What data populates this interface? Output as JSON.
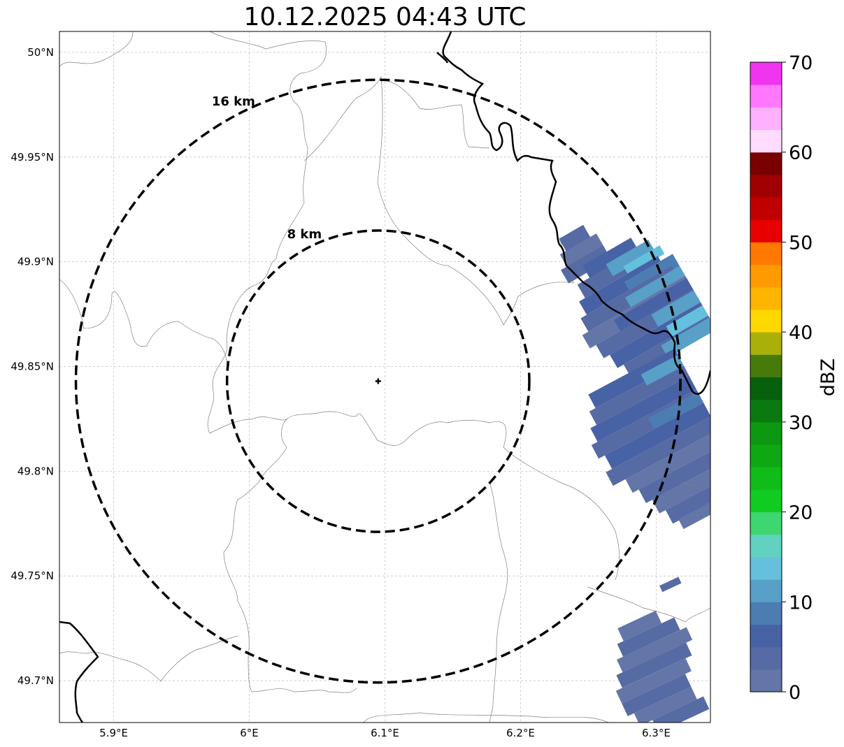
{
  "title": "10.12.2025 04:43 UTC",
  "map": {
    "lon_ticks": [
      {
        "value": 5.9,
        "label": "5.9°E"
      },
      {
        "value": 6.0,
        "label": "6°E"
      },
      {
        "value": 6.1,
        "label": "6.1°E"
      },
      {
        "value": 6.2,
        "label": "6.2°E"
      },
      {
        "value": 6.3,
        "label": "6.3°E"
      }
    ],
    "lat_ticks": [
      {
        "value": 50.0,
        "label": "50°N"
      },
      {
        "value": 49.95,
        "label": "49.95°N"
      },
      {
        "value": 49.9,
        "label": "49.9°N"
      },
      {
        "value": 49.85,
        "label": "49.85°N"
      },
      {
        "value": 49.8,
        "label": "49.8°N"
      },
      {
        "value": 49.75,
        "label": "49.75°N"
      },
      {
        "value": 49.7,
        "label": "49.7°N"
      }
    ],
    "lon_range": [
      5.86,
      6.34
    ],
    "lat_range": [
      49.68,
      50.01
    ],
    "gridlines": true,
    "radar_site": {
      "lon": 6.095,
      "lat": 49.843
    },
    "range_rings": [
      {
        "km": 8,
        "label": "8 km"
      },
      {
        "km": 16,
        "label": "16 km"
      }
    ]
  },
  "colorbar": {
    "label": "dBZ",
    "ticks": [
      "0",
      "10",
      "20",
      "30",
      "40",
      "50",
      "60",
      "70"
    ],
    "min": 0,
    "max": 70,
    "step": 2.5,
    "colors": [
      "#6475a8",
      "#566aa4",
      "#4862a6",
      "#4c7db2",
      "#58a0c8",
      "#64c0dc",
      "#62d2c0",
      "#3ed670",
      "#10cc20",
      "#10bc18",
      "#0ea812",
      "#0c9810",
      "#0a7a10",
      "#06600c",
      "#467a0a",
      "#aab00a",
      "#ffd800",
      "#ffb400",
      "#ff9a00",
      "#ff7800",
      "#e80000",
      "#c00000",
      "#a00000",
      "#780000",
      "#ffdcff",
      "#ffb0ff",
      "#ff78ff",
      "#f034f0"
    ]
  }
}
